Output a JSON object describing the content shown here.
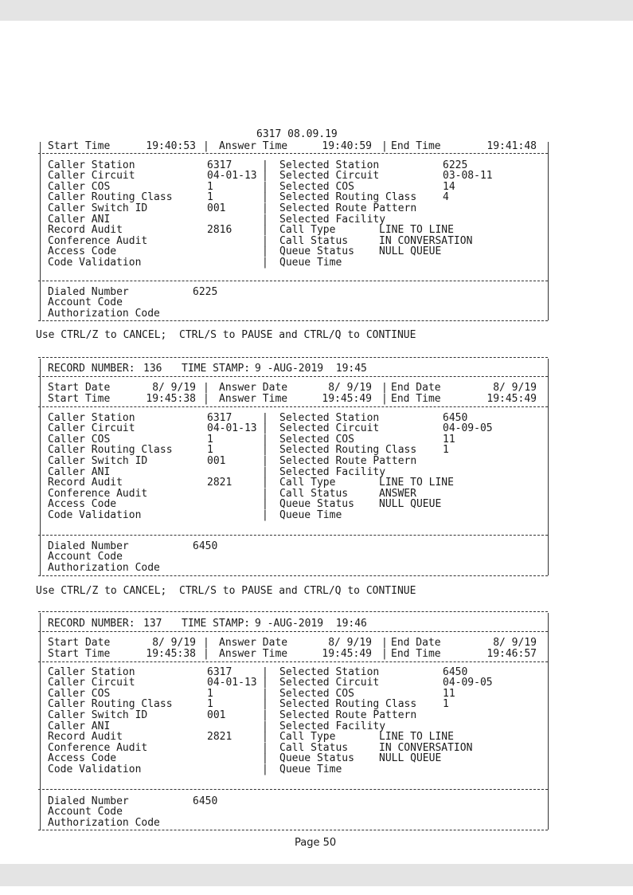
{
  "records": [
    {
      "title": "6317 08.09.19",
      "header": null,
      "dates": null,
      "times": {
        "start_label": "Start Time",
        "start": "19:40:53",
        "answer_label": "Answer Time",
        "answer": "19:40:59",
        "end_label": "End Time",
        "end": "19:41:48"
      },
      "left_fields": [
        {
          "label": "Caller Station",
          "value": "6317"
        },
        {
          "label": "Caller Circuit",
          "value": "04-01-13"
        },
        {
          "label": "Caller COS",
          "value": "1"
        },
        {
          "label": "Caller Routing Class",
          "value": "1"
        },
        {
          "label": "Caller Switch ID",
          "value": "001"
        },
        {
          "label": "Caller ANI",
          "value": ""
        },
        {
          "label": "Record Audit",
          "value": "2816"
        },
        {
          "label": "Conference Audit",
          "value": ""
        },
        {
          "label": "Access Code",
          "value": ""
        },
        {
          "label": "Code Validation",
          "value": ""
        }
      ],
      "right_fields": [
        {
          "label": "Selected Station",
          "value": "6225"
        },
        {
          "label": "Selected Circuit",
          "value": "03-08-11"
        },
        {
          "label": "Selected COS",
          "value": "14"
        },
        {
          "label": "Selected Routing Class",
          "value": "4"
        },
        {
          "label": "Selected Route Pattern",
          "value": ""
        },
        {
          "label": "Selected Facility",
          "value": ""
        },
        {
          "label": "Call Type",
          "value": "LINE TO LINE"
        },
        {
          "label": "Call Status",
          "value": "IN CONVERSATION"
        },
        {
          "label": "Queue Status",
          "value": "NULL QUEUE"
        },
        {
          "label": "Queue Time",
          "value": ""
        }
      ],
      "bottom_fields": [
        {
          "label": "Dialed Number",
          "value": "6225"
        },
        {
          "label": "Account Code",
          "value": ""
        },
        {
          "label": "Authorization Code",
          "value": ""
        }
      ],
      "footer": "Use CTRL/Z to CANCEL;  CTRL/S to PAUSE and CTRL/Q to CONTINUE"
    },
    {
      "title": null,
      "header": {
        "record_label": "RECORD NUMBER:",
        "record_number": "136",
        "timestamp_label": "TIME STAMP:",
        "timestamp": "9 -AUG-2019  19:45"
      },
      "dates": {
        "start_label": "Start Date",
        "start": "8/ 9/19",
        "answer_label": "Answer Date",
        "answer": "8/ 9/19",
        "end_label": "End Date",
        "end": "8/ 9/19"
      },
      "times": {
        "start_label": "Start Time",
        "start": "19:45:38",
        "answer_label": "Answer Time",
        "answer": "19:45:49",
        "end_label": "End Time",
        "end": "19:45:49"
      },
      "left_fields": [
        {
          "label": "Caller Station",
          "value": "6317"
        },
        {
          "label": "Caller Circuit",
          "value": "04-01-13"
        },
        {
          "label": "Caller COS",
          "value": "1"
        },
        {
          "label": "Caller Routing Class",
          "value": "1"
        },
        {
          "label": "Caller Switch ID",
          "value": "001"
        },
        {
          "label": "Caller ANI",
          "value": ""
        },
        {
          "label": "Record Audit",
          "value": "2821"
        },
        {
          "label": "Conference Audit",
          "value": ""
        },
        {
          "label": "Access Code",
          "value": ""
        },
        {
          "label": "Code Validation",
          "value": ""
        }
      ],
      "right_fields": [
        {
          "label": "Selected Station",
          "value": "6450"
        },
        {
          "label": "Selected Circuit",
          "value": "04-09-05"
        },
        {
          "label": "Selected COS",
          "value": "11"
        },
        {
          "label": "Selected Routing Class",
          "value": "1"
        },
        {
          "label": "Selected Route Pattern",
          "value": ""
        },
        {
          "label": "Selected Facility",
          "value": ""
        },
        {
          "label": "Call Type",
          "value": "LINE TO LINE"
        },
        {
          "label": "Call Status",
          "value": "ANSWER"
        },
        {
          "label": "Queue Status",
          "value": "NULL QUEUE"
        },
        {
          "label": "Queue Time",
          "value": ""
        }
      ],
      "bottom_fields": [
        {
          "label": "Dialed Number",
          "value": "6450"
        },
        {
          "label": "Account Code",
          "value": ""
        },
        {
          "label": "Authorization Code",
          "value": ""
        }
      ],
      "footer": "Use CTRL/Z to CANCEL;  CTRL/S to PAUSE and CTRL/Q to CONTINUE"
    },
    {
      "title": null,
      "header": {
        "record_label": "RECORD NUMBER:",
        "record_number": "137",
        "timestamp_label": "TIME STAMP:",
        "timestamp": "9 -AUG-2019  19:46"
      },
      "dates": {
        "start_label": "Start Date",
        "start": "8/ 9/19",
        "answer_label": "Answer Date",
        "answer": "8/ 9/19",
        "end_label": "End Date",
        "end": "8/ 9/19"
      },
      "times": {
        "start_label": "Start Time",
        "start": "19:45:38",
        "answer_label": "Answer Time",
        "answer": "19:45:49",
        "end_label": "End Time",
        "end": "19:46:57"
      },
      "left_fields": [
        {
          "label": "Caller Station",
          "value": "6317"
        },
        {
          "label": "Caller Circuit",
          "value": "04-01-13"
        },
        {
          "label": "Caller COS",
          "value": "1"
        },
        {
          "label": "Caller Routing Class",
          "value": "1"
        },
        {
          "label": "Caller Switch ID",
          "value": "001"
        },
        {
          "label": "Caller ANI",
          "value": ""
        },
        {
          "label": "Record Audit",
          "value": "2821"
        },
        {
          "label": "Conference Audit",
          "value": ""
        },
        {
          "label": "Access Code",
          "value": ""
        },
        {
          "label": "Code Validation",
          "value": ""
        }
      ],
      "right_fields": [
        {
          "label": "Selected Station",
          "value": "6450"
        },
        {
          "label": "Selected Circuit",
          "value": "04-09-05"
        },
        {
          "label": "Selected COS",
          "value": "11"
        },
        {
          "label": "Selected Routing Class",
          "value": "1"
        },
        {
          "label": "Selected Route Pattern",
          "value": ""
        },
        {
          "label": "Selected Facility",
          "value": ""
        },
        {
          "label": "Call Type",
          "value": "LINE TO LINE"
        },
        {
          "label": "Call Status",
          "value": "IN CONVERSATION"
        },
        {
          "label": "Queue Status",
          "value": "NULL QUEUE"
        },
        {
          "label": "Queue Time",
          "value": ""
        }
      ],
      "bottom_fields": [
        {
          "label": "Dialed Number",
          "value": "6450"
        },
        {
          "label": "Account Code",
          "value": ""
        },
        {
          "label": "Authorization Code",
          "value": ""
        }
      ],
      "footer": null
    }
  ],
  "page_label": "Page 50"
}
